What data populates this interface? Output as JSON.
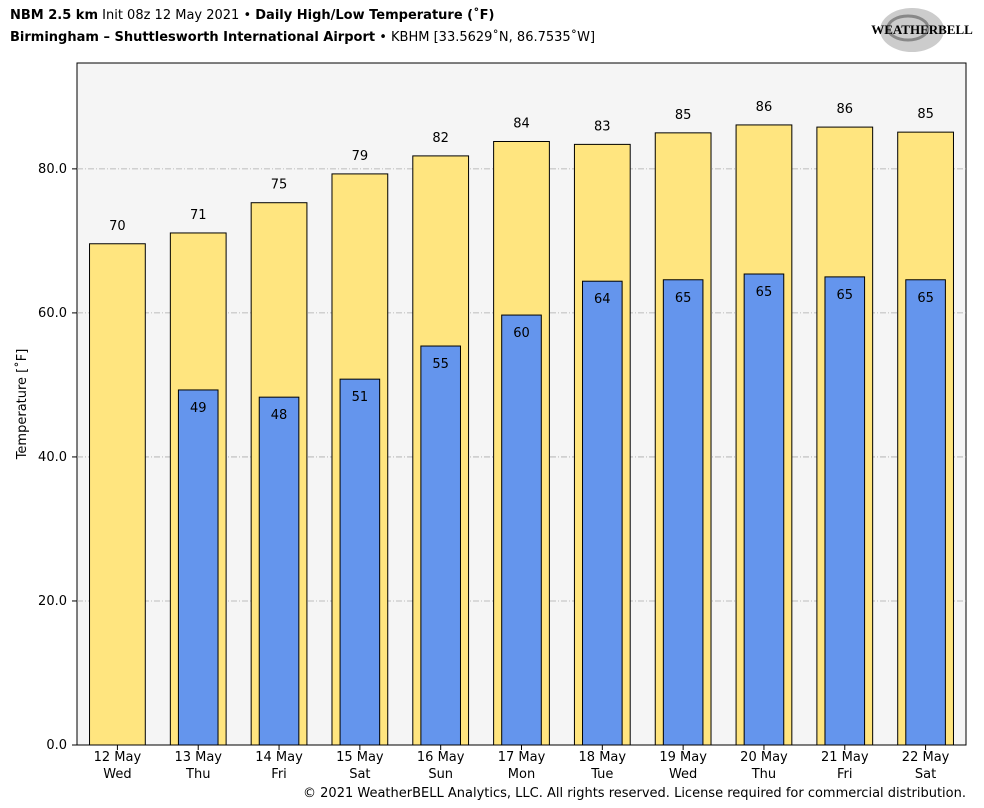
{
  "chart_data": {
    "type": "bar",
    "title_model": "NBM 2.5 km",
    "title_init": "Init 08z 12 May 2021",
    "title_product": "Daily High/Low Temperature (˚F)",
    "subtitle_location": "Birmingham – Shuttlesworth International Airport",
    "subtitle_station": "KBHM [33.5629˚N, 86.7535˚W]",
    "logo": "WEATHERBELL",
    "y_label": "Temperature [˚F]",
    "credit": "© 2021 WeatherBELL Analytics, LLC. All rights reserved. License required for commercial distribution.",
    "categories": [
      "12 May",
      "13 May",
      "14 May",
      "15 May",
      "16 May",
      "17 May",
      "18 May",
      "19 May",
      "20 May",
      "21 May",
      "22 May"
    ],
    "weekdays": [
      "Wed",
      "Thu",
      "Fri",
      "Sat",
      "Sun",
      "Mon",
      "Tue",
      "Wed",
      "Thu",
      "Fri",
      "Sat"
    ],
    "series": [
      {
        "name": "High",
        "color": "#ffe57f",
        "values": [
          69.6,
          71.1,
          75.3,
          79.3,
          81.8,
          83.8,
          83.4,
          85.0,
          86.1,
          85.8,
          85.1
        ],
        "value_labels": [
          "70",
          "71",
          "75",
          "79",
          "82",
          "84",
          "83",
          "85",
          "86",
          "86",
          "85"
        ]
      },
      {
        "name": "Low",
        "color": "#6495ed",
        "values": [
          null,
          49.3,
          48.3,
          50.8,
          55.4,
          59.7,
          64.4,
          64.6,
          65.4,
          65.0,
          64.6
        ],
        "value_labels": [
          null,
          "49",
          "48",
          "51",
          "55",
          "60",
          "64",
          "65",
          "65",
          "65",
          "65"
        ]
      }
    ],
    "ylim": [
      0,
      94.7
    ],
    "yticks": [
      {
        "value": 0,
        "label": "0.0"
      },
      {
        "value": 20,
        "label": "20.0"
      },
      {
        "value": 40,
        "label": "40.0"
      },
      {
        "value": 60,
        "label": "60.0"
      },
      {
        "value": 80,
        "label": "80.0"
      }
    ],
    "grid": true
  }
}
